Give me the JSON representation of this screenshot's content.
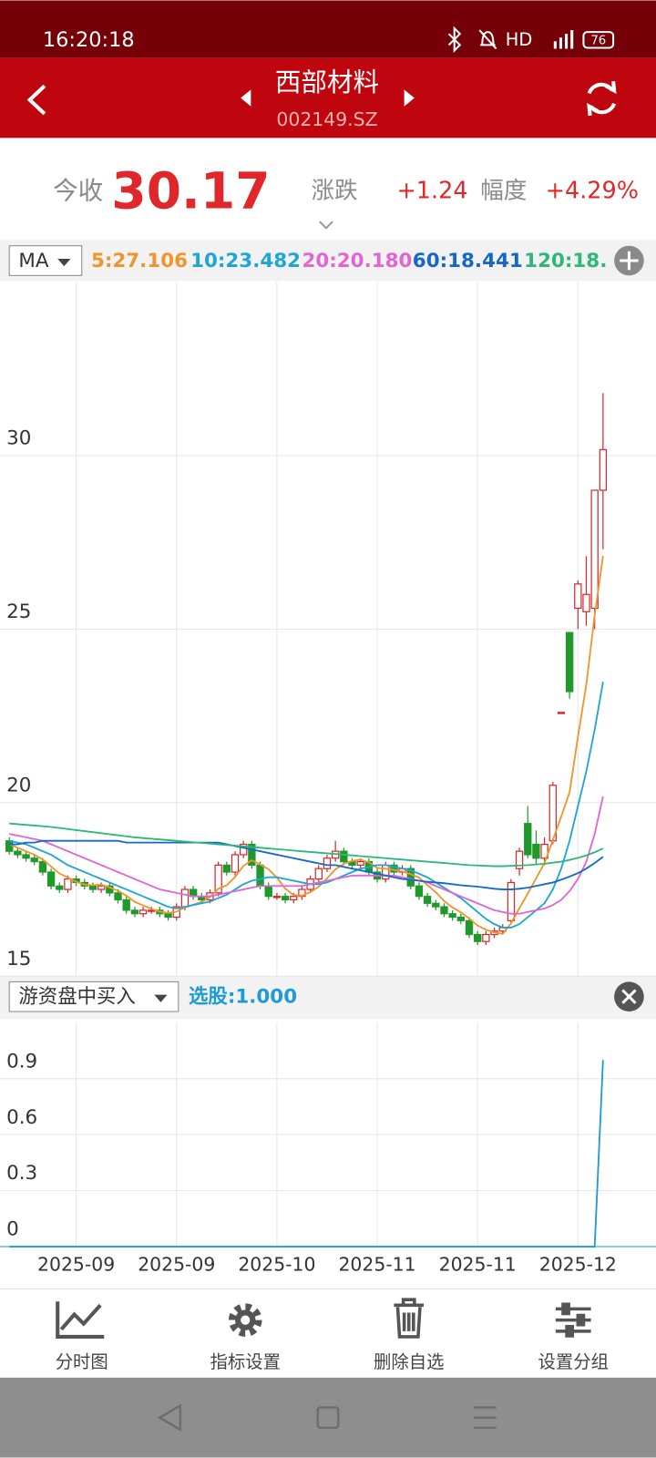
{
  "status_bar": {
    "time": "16:20:18",
    "network": "HD",
    "battery": "76"
  },
  "header": {
    "title": "西部材料",
    "code": "002149.SZ"
  },
  "quote": {
    "label": "今收",
    "price": "30.17",
    "change_label": "涨跌",
    "change": "+1.24",
    "range_label": "幅度",
    "range": "+4.29%"
  },
  "indicator_selector": "MA",
  "sub_indicator_selector": "游资盘中买入",
  "toolbar": [
    "分时图",
    "指标设置",
    "删除自选",
    "设置分组"
  ],
  "chart_data": [
    {
      "type": "candlestick",
      "categories": [
        null,
        null,
        null,
        null,
        null,
        null,
        null,
        null,
        "2025-09",
        null,
        null,
        null,
        null,
        null,
        null,
        null,
        null,
        null,
        null,
        null,
        "2025-09",
        null,
        null,
        null,
        null,
        null,
        null,
        null,
        null,
        null,
        null,
        null,
        "2025-10",
        null,
        null,
        null,
        null,
        null,
        null,
        null,
        null,
        null,
        null,
        null,
        "2025-11",
        null,
        null,
        null,
        null,
        null,
        null,
        null,
        null,
        null,
        null,
        null,
        "2025-11",
        null,
        null,
        null,
        null,
        null,
        null,
        null,
        null,
        null,
        null,
        null,
        "2025-12",
        null,
        null,
        null
      ],
      "open": [
        18.9,
        18.6,
        18.5,
        18.4,
        18.3,
        18.0,
        17.6,
        17.5,
        17.8,
        17.7,
        17.6,
        17.5,
        17.6,
        17.4,
        17.2,
        16.9,
        16.8,
        16.9,
        16.9,
        16.8,
        16.7,
        17.0,
        17.5,
        17.3,
        17.2,
        17.4,
        18.2,
        18.0,
        18.5,
        18.8,
        18.2,
        17.6,
        17.3,
        17.3,
        17.2,
        17.3,
        17.5,
        17.8,
        18.1,
        18.4,
        18.6,
        18.3,
        18.2,
        18.3,
        18.0,
        17.8,
        18.2,
        18.0,
        18.1,
        17.6,
        17.3,
        17.1,
        17.0,
        16.8,
        16.7,
        16.6,
        16.2,
        16.0,
        16.2,
        16.3,
        16.6,
        18.1,
        19.4,
        18.8,
        18.4,
        18.9,
        22.6,
        24.9,
        25.6,
        25.5,
        25.6,
        29.0
      ],
      "high": [
        19.0,
        18.7,
        18.6,
        18.5,
        18.4,
        18.1,
        17.7,
        17.9,
        17.9,
        17.8,
        17.7,
        17.7,
        17.7,
        17.5,
        17.3,
        17.0,
        17.0,
        17.0,
        17.0,
        16.9,
        17.1,
        17.6,
        17.6,
        17.4,
        17.5,
        18.3,
        18.3,
        18.6,
        18.9,
        18.9,
        18.3,
        17.7,
        17.4,
        17.4,
        17.4,
        17.6,
        17.9,
        18.2,
        18.5,
        18.9,
        18.7,
        18.4,
        18.4,
        18.4,
        18.1,
        18.3,
        18.3,
        18.2,
        18.2,
        17.7,
        17.4,
        17.2,
        17.1,
        16.9,
        16.8,
        16.7,
        16.3,
        16.3,
        16.4,
        16.5,
        17.8,
        18.7,
        19.9,
        19.2,
        19.0,
        20.6,
        22.6,
        24.9,
        26.4,
        27.1,
        29.0,
        31.8
      ],
      "low": [
        18.5,
        18.4,
        18.3,
        18.2,
        17.9,
        17.5,
        17.4,
        17.4,
        17.6,
        17.5,
        17.4,
        17.4,
        17.3,
        17.1,
        16.8,
        16.7,
        16.7,
        16.8,
        16.7,
        16.6,
        16.6,
        16.9,
        17.2,
        17.1,
        17.1,
        17.3,
        17.9,
        17.9,
        18.4,
        18.1,
        17.5,
        17.2,
        17.2,
        17.1,
        17.1,
        17.2,
        17.4,
        17.7,
        18.0,
        18.3,
        18.2,
        18.1,
        18.1,
        17.9,
        17.7,
        17.7,
        17.9,
        17.9,
        17.5,
        17.2,
        17.0,
        16.9,
        16.7,
        16.6,
        16.5,
        16.1,
        15.9,
        15.9,
        16.1,
        16.2,
        16.5,
        17.9,
        18.4,
        18.2,
        18.2,
        18.8,
        22.6,
        23.0,
        25.0,
        25.1,
        25.0,
        27.3
      ],
      "close": [
        18.6,
        18.5,
        18.4,
        18.3,
        18.0,
        17.6,
        17.5,
        17.8,
        17.7,
        17.6,
        17.5,
        17.6,
        17.4,
        17.2,
        16.9,
        16.8,
        16.9,
        16.9,
        16.8,
        16.7,
        17.0,
        17.5,
        17.3,
        17.2,
        17.4,
        18.2,
        18.0,
        18.5,
        18.8,
        18.2,
        17.6,
        17.3,
        17.3,
        17.2,
        17.3,
        17.5,
        17.8,
        18.1,
        18.4,
        18.6,
        18.3,
        18.2,
        18.3,
        18.0,
        17.8,
        18.2,
        18.0,
        18.1,
        17.6,
        17.3,
        17.1,
        17.0,
        16.8,
        16.7,
        16.6,
        16.2,
        16.0,
        16.2,
        16.3,
        16.4,
        17.7,
        18.6,
        18.5,
        18.4,
        18.8,
        20.5,
        22.6,
        23.2,
        26.3,
        26.0,
        29.0,
        30.17
      ],
      "up_color": "#d9262b",
      "down_color": "#1f9a2a",
      "ylim": [
        15,
        35
      ],
      "yticks": [
        15,
        20,
        25,
        30
      ],
      "grid": true,
      "series": [
        {
          "name": "5:27.106",
          "color": "#f0952c",
          "values": [
            18.8,
            18.7,
            18.6,
            18.5,
            18.36,
            18.16,
            17.96,
            17.84,
            17.72,
            17.64,
            17.62,
            17.64,
            17.56,
            17.46,
            17.32,
            17.14,
            17.04,
            16.94,
            16.86,
            16.82,
            16.86,
            16.98,
            17.06,
            17.14,
            17.28,
            17.52,
            17.62,
            17.86,
            18.18,
            18.34,
            18.22,
            18.08,
            17.84,
            17.52,
            17.34,
            17.32,
            17.42,
            17.58,
            17.82,
            18.08,
            18.24,
            18.32,
            18.36,
            18.28,
            18.12,
            18.1,
            18.06,
            18.02,
            17.94,
            17.84,
            17.62,
            17.42,
            17.16,
            16.98,
            16.84,
            16.66,
            16.46,
            16.34,
            16.26,
            16.22,
            16.52,
            16.96,
            17.38,
            17.82,
            18.26,
            18.92,
            19.6,
            20.3,
            21.9,
            23.4,
            25.4,
            27.106
          ]
        },
        {
          "name": "10:23.482",
          "color": "#1ea6d6",
          "values": [
            18.9,
            18.85,
            18.8,
            18.7,
            18.6,
            18.5,
            18.35,
            18.2,
            18.1,
            18.0,
            17.9,
            17.8,
            17.7,
            17.6,
            17.5,
            17.4,
            17.3,
            17.2,
            17.1,
            17.0,
            16.95,
            17.0,
            17.05,
            17.1,
            17.15,
            17.25,
            17.35,
            17.5,
            17.65,
            17.75,
            17.8,
            17.85,
            17.85,
            17.8,
            17.75,
            17.7,
            17.65,
            17.65,
            17.7,
            17.8,
            17.9,
            18.0,
            18.1,
            18.15,
            18.2,
            18.2,
            18.15,
            18.1,
            18.05,
            17.95,
            17.85,
            17.7,
            17.55,
            17.4,
            17.25,
            17.05,
            16.85,
            16.65,
            16.5,
            16.4,
            16.4,
            16.5,
            16.7,
            16.9,
            17.1,
            17.5,
            18.1,
            18.9,
            19.9,
            20.9,
            22.1,
            23.482
          ]
        },
        {
          "name": "20:20.180",
          "color": "#e067d2",
          "values": [
            19.1,
            19.05,
            19.0,
            18.95,
            18.9,
            18.8,
            18.7,
            18.6,
            18.5,
            18.4,
            18.3,
            18.2,
            18.1,
            18.0,
            17.9,
            17.8,
            17.7,
            17.6,
            17.5,
            17.45,
            17.4,
            17.35,
            17.3,
            17.3,
            17.3,
            17.35,
            17.4,
            17.45,
            17.5,
            17.55,
            17.6,
            17.6,
            17.6,
            17.6,
            17.6,
            17.6,
            17.65,
            17.7,
            17.75,
            17.8,
            17.85,
            17.9,
            17.9,
            17.9,
            17.9,
            17.9,
            17.9,
            17.85,
            17.8,
            17.75,
            17.7,
            17.6,
            17.5,
            17.4,
            17.3,
            17.2,
            17.1,
            17.0,
            16.9,
            16.85,
            16.8,
            16.8,
            16.85,
            16.9,
            16.95,
            17.05,
            17.2,
            17.45,
            17.8,
            18.3,
            19.1,
            20.18
          ]
        },
        {
          "name": "60:18.441",
          "color": "#1668c8",
          "values": [
            18.8,
            18.8,
            18.85,
            18.85,
            18.9,
            18.9,
            18.9,
            18.9,
            18.9,
            18.9,
            18.9,
            18.9,
            18.9,
            18.9,
            18.85,
            18.85,
            18.85,
            18.85,
            18.85,
            18.85,
            18.85,
            18.85,
            18.85,
            18.85,
            18.85,
            18.85,
            18.8,
            18.75,
            18.7,
            18.65,
            18.6,
            18.55,
            18.5,
            18.45,
            18.4,
            18.35,
            18.3,
            18.25,
            18.2,
            18.2,
            18.15,
            18.1,
            18.05,
            18.0,
            17.95,
            17.9,
            17.85,
            17.8,
            17.78,
            17.75,
            17.72,
            17.7,
            17.68,
            17.65,
            17.62,
            17.6,
            17.58,
            17.55,
            17.52,
            17.5,
            17.5,
            17.52,
            17.55,
            17.6,
            17.65,
            17.7,
            17.78,
            17.87,
            17.97,
            18.1,
            18.26,
            18.441
          ]
        },
        {
          "name": "120:18.",
          "color": "#2db87a",
          "values": [
            19.4,
            19.38,
            19.36,
            19.34,
            19.32,
            19.3,
            19.27,
            19.24,
            19.21,
            19.18,
            19.15,
            19.12,
            19.09,
            19.06,
            19.03,
            19.0,
            18.98,
            18.96,
            18.94,
            18.92,
            18.9,
            18.88,
            18.86,
            18.84,
            18.82,
            18.8,
            18.78,
            18.76,
            18.74,
            18.72,
            18.7,
            18.68,
            18.66,
            18.64,
            18.62,
            18.6,
            18.58,
            18.56,
            18.54,
            18.52,
            18.5,
            18.48,
            18.46,
            18.44,
            18.42,
            18.4,
            18.38,
            18.36,
            18.34,
            18.32,
            18.3,
            18.28,
            18.26,
            18.24,
            18.22,
            18.2,
            18.19,
            18.18,
            18.17,
            18.17,
            18.18,
            18.19,
            18.2,
            18.22,
            18.24,
            18.27,
            18.3,
            18.35,
            18.41,
            18.48,
            18.57,
            18.68
          ]
        }
      ]
    },
    {
      "type": "line",
      "ylim": [
        0,
        1.2
      ],
      "yticks": [
        0,
        0.3,
        0.6,
        0.9
      ],
      "grid": true,
      "series": [
        {
          "name": "选股:1.000",
          "color": "#1e9bd7",
          "values": [
            0,
            0,
            0,
            0,
            0,
            0,
            0,
            0,
            0,
            0,
            0,
            0,
            0,
            0,
            0,
            0,
            0,
            0,
            0,
            0,
            0,
            0,
            0,
            0,
            0,
            0,
            0,
            0,
            0,
            0,
            0,
            0,
            0,
            0,
            0,
            0,
            0,
            0,
            0,
            0,
            0,
            0,
            0,
            0,
            0,
            0,
            0,
            0,
            0,
            0,
            0,
            0,
            0,
            0,
            0,
            0,
            0,
            0,
            0,
            0,
            0,
            0,
            0,
            0,
            0,
            0,
            0,
            0,
            0,
            0,
            0,
            1.0
          ]
        }
      ]
    }
  ]
}
